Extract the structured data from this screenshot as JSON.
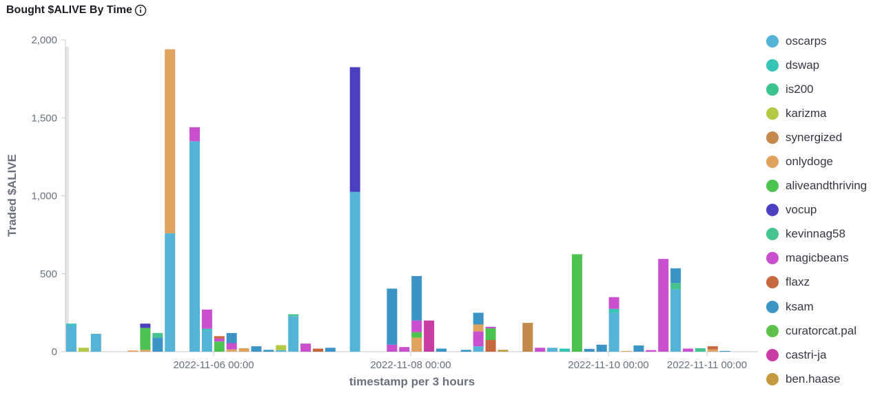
{
  "title": "Bought $ALIVE By Time",
  "chart_data": {
    "type": "bar",
    "stacked": true,
    "title": "Bought $ALIVE By Time",
    "xlabel": "timestamp per 3 hours",
    "ylabel": "Traded $ALIVE",
    "ylim": [
      0,
      2000
    ],
    "y_ticks": [
      "0",
      "500",
      "1,000",
      "1,500",
      "2,000"
    ],
    "x_ticks": [
      "2022-11-06 00:00",
      "2022-11-08 00:00",
      "2022-11-10 00:00",
      "2022-11-11 00:00"
    ],
    "grid": false,
    "legend_position": "right",
    "series_names": [
      "oscarps",
      "dswap",
      "is200",
      "karizma",
      "synergized",
      "onlydoge",
      "aliveandthriving",
      "vocup",
      "kevinnag58",
      "magicbeans",
      "flaxz",
      "ksam",
      "curatorcat.pal",
      "castri-ja",
      "ben.haase"
    ],
    "colors": {
      "oscarps": "#54b3d6",
      "dswap": "#36c4b5",
      "is200": "#3cc28c",
      "karizma": "#b5c845",
      "synergized": "#c4884a",
      "onlydoge": "#e0a35f",
      "aliveandthriving": "#4cc24f",
      "vocup": "#4a40c0",
      "kevinnag58": "#43c48e",
      "magicbeans": "#c94fcf",
      "flaxz": "#c7683f",
      "ksam": "#3c93c6",
      "curatorcat.pal": "#5ec24a",
      "castri-ja": "#c83da4",
      "ben.haase": "#c49a3f"
    },
    "bars": [
      {
        "slot": 0,
        "segments": [
          [
            "oscarps",
            170
          ],
          [
            "dswap",
            10
          ]
        ]
      },
      {
        "slot": 1,
        "segments": [
          [
            "karizma",
            25
          ]
        ]
      },
      {
        "slot": 2,
        "segments": [
          [
            "oscarps",
            115
          ]
        ]
      },
      {
        "slot": 5,
        "segments": [
          [
            "onlydoge",
            8
          ]
        ]
      },
      {
        "slot": 6,
        "segments": [
          [
            "onlydoge",
            12
          ],
          [
            "aliveandthriving",
            140
          ],
          [
            "vocup",
            28
          ]
        ]
      },
      {
        "slot": 7,
        "segments": [
          [
            "ksam",
            90
          ],
          [
            "kevinnag58",
            30
          ]
        ]
      },
      {
        "slot": 8,
        "segments": [
          [
            "oscarps",
            760
          ],
          [
            "onlydoge",
            1180
          ]
        ]
      },
      {
        "slot": 10,
        "segments": [
          [
            "oscarps",
            1350
          ],
          [
            "magicbeans",
            90
          ]
        ]
      },
      {
        "slot": 11,
        "segments": [
          [
            "oscarps",
            135
          ],
          [
            "dswap",
            12
          ],
          [
            "magicbeans",
            123
          ]
        ]
      },
      {
        "slot": 12,
        "segments": [
          [
            "aliveandthriving",
            65
          ],
          [
            "magicbeans",
            20
          ],
          [
            "flaxz",
            15
          ]
        ]
      },
      {
        "slot": 13,
        "segments": [
          [
            "onlydoge",
            15
          ],
          [
            "magicbeans",
            40
          ],
          [
            "ksam",
            65
          ]
        ]
      },
      {
        "slot": 14,
        "segments": [
          [
            "onlydoge",
            22
          ]
        ]
      },
      {
        "slot": 15,
        "segments": [
          [
            "ksam",
            35
          ]
        ]
      },
      {
        "slot": 16,
        "segments": [
          [
            "ksam",
            12
          ]
        ]
      },
      {
        "slot": 17,
        "segments": [
          [
            "oscarps",
            10
          ],
          [
            "karizma",
            32
          ]
        ]
      },
      {
        "slot": 18,
        "segments": [
          [
            "oscarps",
            228
          ],
          [
            "kevinnag58",
            12
          ]
        ]
      },
      {
        "slot": 19,
        "segments": [
          [
            "magicbeans",
            52
          ]
        ]
      },
      {
        "slot": 20,
        "segments": [
          [
            "flaxz",
            20
          ]
        ]
      },
      {
        "slot": 21,
        "segments": [
          [
            "ksam",
            25
          ]
        ]
      },
      {
        "slot": 23,
        "segments": [
          [
            "oscarps",
            1025
          ],
          [
            "vocup",
            800
          ]
        ]
      },
      {
        "slot": 26,
        "segments": [
          [
            "magicbeans",
            45
          ],
          [
            "ksam",
            360
          ]
        ]
      },
      {
        "slot": 27,
        "segments": [
          [
            "magicbeans",
            30
          ]
        ]
      },
      {
        "slot": 28,
        "segments": [
          [
            "onlydoge",
            90
          ],
          [
            "aliveandthriving",
            35
          ],
          [
            "magicbeans",
            75
          ],
          [
            "ksam",
            285
          ]
        ]
      },
      {
        "slot": 29,
        "segments": [
          [
            "castri-ja",
            200
          ]
        ]
      },
      {
        "slot": 30,
        "segments": [
          [
            "ksam",
            20
          ]
        ]
      },
      {
        "slot": 32,
        "segments": [
          [
            "ksam",
            12
          ]
        ]
      },
      {
        "slot": 33,
        "segments": [
          [
            "oscarps",
            35
          ],
          [
            "magicbeans",
            95
          ],
          [
            "onlydoge",
            45
          ],
          [
            "ksam",
            75
          ]
        ]
      },
      {
        "slot": 34,
        "segments": [
          [
            "flaxz",
            75
          ],
          [
            "aliveandthriving",
            75
          ],
          [
            "magicbeans",
            10
          ]
        ]
      },
      {
        "slot": 35,
        "segments": [
          [
            "ben.haase",
            12
          ]
        ]
      },
      {
        "slot": 37,
        "segments": [
          [
            "synergized",
            185
          ]
        ]
      },
      {
        "slot": 38,
        "segments": [
          [
            "magicbeans",
            25
          ]
        ]
      },
      {
        "slot": 39,
        "segments": [
          [
            "oscarps",
            25
          ]
        ]
      },
      {
        "slot": 40,
        "segments": [
          [
            "dswap",
            20
          ]
        ]
      },
      {
        "slot": 41,
        "segments": [
          [
            "aliveandthriving",
            625
          ]
        ]
      },
      {
        "slot": 42,
        "segments": [
          [
            "ksam",
            18
          ]
        ]
      },
      {
        "slot": 43,
        "segments": [
          [
            "ksam",
            45
          ]
        ]
      },
      {
        "slot": 44,
        "segments": [
          [
            "oscarps",
            250
          ],
          [
            "dswap",
            25
          ],
          [
            "magicbeans",
            75
          ]
        ]
      },
      {
        "slot": 45,
        "segments": [
          [
            "onlydoge",
            5
          ]
        ]
      },
      {
        "slot": 46,
        "segments": [
          [
            "ksam",
            40
          ]
        ]
      },
      {
        "slot": 47,
        "segments": [
          [
            "magicbeans",
            10
          ]
        ]
      },
      {
        "slot": 48,
        "segments": [
          [
            "magicbeans",
            595
          ]
        ]
      },
      {
        "slot": 49,
        "segments": [
          [
            "oscarps",
            400
          ],
          [
            "kevinnag58",
            40
          ],
          [
            "ksam",
            95
          ]
        ]
      },
      {
        "slot": 50,
        "segments": [
          [
            "magicbeans",
            20
          ]
        ]
      },
      {
        "slot": 51,
        "segments": [
          [
            "kevinnag58",
            22
          ]
        ]
      },
      {
        "slot": 52,
        "segments": [
          [
            "onlydoge",
            15
          ],
          [
            "flaxz",
            20
          ]
        ]
      },
      {
        "slot": 53,
        "segments": [
          [
            "ksam",
            5
          ]
        ]
      }
    ]
  }
}
